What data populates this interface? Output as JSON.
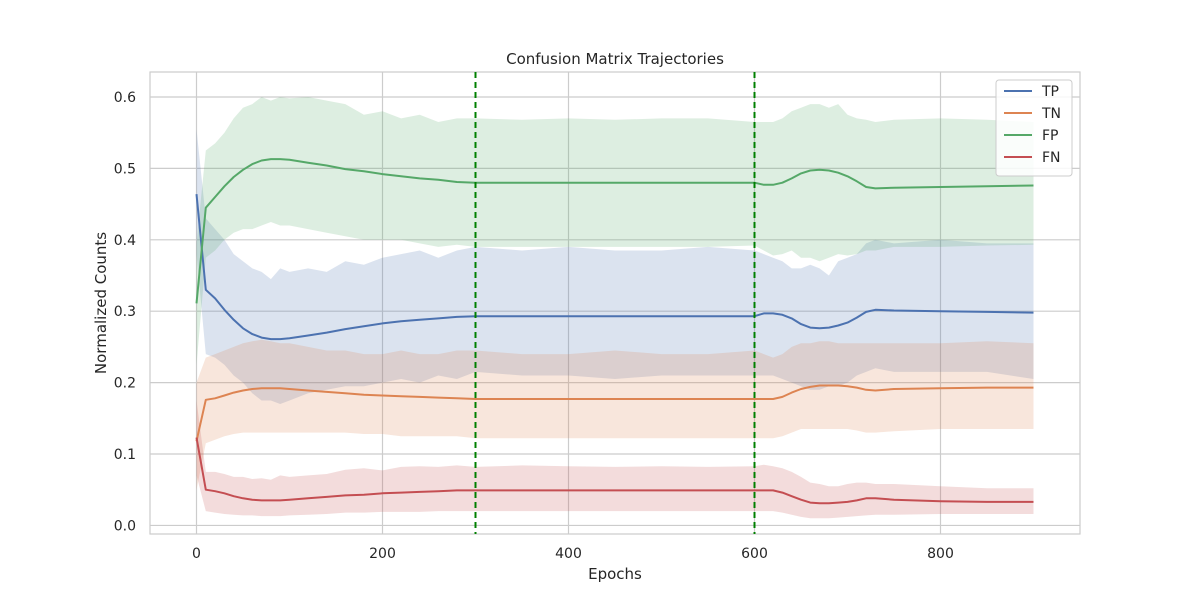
{
  "chart_data": {
    "type": "line",
    "title": "Confusion Matrix Trajectories",
    "xlabel": "Epochs",
    "ylabel": "Normalized Counts",
    "xlim": [
      -50,
      950
    ],
    "ylim": [
      -0.012,
      0.635
    ],
    "xticks": [
      0,
      200,
      400,
      600,
      800
    ],
    "yticks": [
      0.0,
      0.1,
      0.2,
      0.3,
      0.4,
      0.5,
      0.6
    ],
    "ytick_labels": [
      "0.0",
      "0.1",
      "0.2",
      "0.3",
      "0.4",
      "0.5",
      "0.6"
    ],
    "grid": true,
    "legend_position": "top-right",
    "vertical_lines": [
      {
        "x": 300,
        "color": "#008000",
        "style": "dashed"
      },
      {
        "x": 600,
        "color": "#008000",
        "style": "dashed"
      }
    ],
    "series": [
      {
        "name": "TP",
        "color": "#4c72b0",
        "x": [
          0,
          10,
          20,
          30,
          40,
          50,
          60,
          70,
          80,
          90,
          100,
          120,
          140,
          160,
          180,
          200,
          220,
          240,
          260,
          280,
          300,
          350,
          400,
          450,
          500,
          550,
          600,
          610,
          620,
          630,
          640,
          650,
          660,
          670,
          680,
          690,
          700,
          710,
          720,
          730,
          750,
          800,
          850,
          900
        ],
        "values": [
          0.464,
          0.33,
          0.318,
          0.302,
          0.288,
          0.276,
          0.268,
          0.263,
          0.261,
          0.261,
          0.262,
          0.266,
          0.27,
          0.275,
          0.279,
          0.283,
          0.286,
          0.288,
          0.29,
          0.292,
          0.293,
          0.293,
          0.293,
          0.293,
          0.293,
          0.293,
          0.293,
          0.297,
          0.297,
          0.295,
          0.29,
          0.282,
          0.277,
          0.276,
          0.277,
          0.28,
          0.284,
          0.291,
          0.299,
          0.302,
          0.301,
          0.3,
          0.299,
          0.298
        ],
        "band_upper": [
          0.555,
          0.43,
          0.415,
          0.4,
          0.38,
          0.37,
          0.36,
          0.355,
          0.345,
          0.36,
          0.355,
          0.36,
          0.355,
          0.37,
          0.365,
          0.375,
          0.38,
          0.385,
          0.375,
          0.385,
          0.39,
          0.385,
          0.39,
          0.385,
          0.385,
          0.39,
          0.385,
          0.38,
          0.375,
          0.37,
          0.36,
          0.36,
          0.365,
          0.36,
          0.35,
          0.37,
          0.375,
          0.38,
          0.395,
          0.4,
          0.395,
          0.4,
          0.395,
          0.395
        ],
        "band_lower": [
          0.38,
          0.24,
          0.235,
          0.225,
          0.21,
          0.2,
          0.185,
          0.175,
          0.175,
          0.17,
          0.175,
          0.185,
          0.19,
          0.195,
          0.195,
          0.2,
          0.205,
          0.2,
          0.21,
          0.205,
          0.215,
          0.21,
          0.21,
          0.205,
          0.21,
          0.21,
          0.21,
          0.21,
          0.21,
          0.205,
          0.2,
          0.195,
          0.19,
          0.19,
          0.195,
          0.195,
          0.2,
          0.21,
          0.215,
          0.22,
          0.215,
          0.215,
          0.215,
          0.205
        ]
      },
      {
        "name": "TN",
        "color": "#dd8452",
        "x": [
          0,
          10,
          20,
          30,
          40,
          50,
          60,
          70,
          80,
          90,
          100,
          120,
          140,
          160,
          180,
          200,
          220,
          240,
          260,
          280,
          300,
          350,
          400,
          450,
          500,
          550,
          600,
          610,
          620,
          630,
          640,
          650,
          660,
          670,
          680,
          690,
          700,
          710,
          720,
          730,
          750,
          800,
          850,
          900
        ],
        "values": [
          0.118,
          0.176,
          0.178,
          0.182,
          0.186,
          0.189,
          0.191,
          0.192,
          0.192,
          0.192,
          0.191,
          0.189,
          0.187,
          0.185,
          0.183,
          0.182,
          0.181,
          0.18,
          0.179,
          0.178,
          0.177,
          0.177,
          0.177,
          0.177,
          0.177,
          0.177,
          0.177,
          0.177,
          0.177,
          0.18,
          0.186,
          0.191,
          0.194,
          0.196,
          0.196,
          0.196,
          0.195,
          0.193,
          0.19,
          0.189,
          0.191,
          0.192,
          0.193,
          0.193
        ],
        "band_upper": [
          0.2,
          0.235,
          0.24,
          0.245,
          0.25,
          0.255,
          0.258,
          0.26,
          0.258,
          0.255,
          0.255,
          0.25,
          0.245,
          0.245,
          0.24,
          0.24,
          0.245,
          0.24,
          0.24,
          0.245,
          0.245,
          0.24,
          0.24,
          0.245,
          0.24,
          0.24,
          0.245,
          0.24,
          0.235,
          0.24,
          0.25,
          0.255,
          0.255,
          0.258,
          0.258,
          0.255,
          0.255,
          0.255,
          0.255,
          0.255,
          0.255,
          0.255,
          0.258,
          0.255
        ],
        "band_lower": [
          0.05,
          0.115,
          0.12,
          0.125,
          0.128,
          0.13,
          0.13,
          0.13,
          0.13,
          0.13,
          0.13,
          0.13,
          0.13,
          0.13,
          0.128,
          0.128,
          0.125,
          0.125,
          0.125,
          0.125,
          0.122,
          0.122,
          0.122,
          0.122,
          0.122,
          0.122,
          0.122,
          0.122,
          0.122,
          0.125,
          0.13,
          0.135,
          0.135,
          0.135,
          0.135,
          0.135,
          0.135,
          0.133,
          0.13,
          0.13,
          0.132,
          0.135,
          0.135,
          0.135
        ]
      },
      {
        "name": "FP",
        "color": "#55a868",
        "x": [
          0,
          10,
          20,
          30,
          40,
          50,
          60,
          70,
          80,
          90,
          100,
          120,
          140,
          160,
          180,
          200,
          220,
          240,
          260,
          280,
          300,
          350,
          400,
          450,
          500,
          550,
          600,
          610,
          620,
          630,
          640,
          650,
          660,
          670,
          680,
          690,
          700,
          710,
          720,
          730,
          750,
          800,
          850,
          900
        ],
        "values": [
          0.311,
          0.445,
          0.46,
          0.475,
          0.488,
          0.498,
          0.506,
          0.511,
          0.513,
          0.513,
          0.512,
          0.508,
          0.504,
          0.499,
          0.496,
          0.492,
          0.489,
          0.486,
          0.484,
          0.481,
          0.48,
          0.48,
          0.48,
          0.48,
          0.48,
          0.48,
          0.48,
          0.477,
          0.477,
          0.48,
          0.486,
          0.493,
          0.497,
          0.498,
          0.497,
          0.494,
          0.489,
          0.482,
          0.474,
          0.472,
          0.473,
          0.474,
          0.475,
          0.476
        ],
        "band_upper": [
          0.395,
          0.525,
          0.535,
          0.55,
          0.57,
          0.585,
          0.59,
          0.6,
          0.595,
          0.6,
          0.598,
          0.6,
          0.595,
          0.59,
          0.575,
          0.58,
          0.57,
          0.575,
          0.565,
          0.57,
          0.57,
          0.568,
          0.57,
          0.568,
          0.57,
          0.57,
          0.565,
          0.565,
          0.565,
          0.57,
          0.58,
          0.585,
          0.59,
          0.59,
          0.585,
          0.59,
          0.575,
          0.57,
          0.568,
          0.565,
          0.568,
          0.57,
          0.568,
          0.565
        ],
        "band_lower": [
          0.225,
          0.375,
          0.385,
          0.4,
          0.41,
          0.415,
          0.415,
          0.42,
          0.425,
          0.42,
          0.42,
          0.415,
          0.41,
          0.405,
          0.4,
          0.4,
          0.4,
          0.395,
          0.39,
          0.393,
          0.39,
          0.39,
          0.39,
          0.39,
          0.39,
          0.39,
          0.392,
          0.385,
          0.378,
          0.38,
          0.385,
          0.375,
          0.375,
          0.37,
          0.375,
          0.38,
          0.378,
          0.38,
          0.385,
          0.385,
          0.39,
          0.39,
          0.392,
          0.393
        ]
      },
      {
        "name": "FN",
        "color": "#c44e52",
        "x": [
          0,
          10,
          20,
          30,
          40,
          50,
          60,
          70,
          80,
          90,
          100,
          120,
          140,
          160,
          180,
          200,
          220,
          240,
          260,
          280,
          300,
          350,
          400,
          450,
          500,
          550,
          600,
          610,
          620,
          630,
          640,
          650,
          660,
          670,
          680,
          690,
          700,
          710,
          720,
          730,
          750,
          800,
          850,
          900
        ],
        "values": [
          0.123,
          0.05,
          0.048,
          0.045,
          0.041,
          0.038,
          0.036,
          0.035,
          0.035,
          0.035,
          0.036,
          0.038,
          0.04,
          0.042,
          0.043,
          0.045,
          0.046,
          0.047,
          0.048,
          0.049,
          0.049,
          0.049,
          0.049,
          0.049,
          0.049,
          0.049,
          0.049,
          0.049,
          0.049,
          0.046,
          0.041,
          0.036,
          0.032,
          0.031,
          0.031,
          0.032,
          0.033,
          0.035,
          0.038,
          0.038,
          0.036,
          0.034,
          0.033,
          0.033
        ],
        "band_upper": [
          0.175,
          0.075,
          0.075,
          0.072,
          0.068,
          0.068,
          0.065,
          0.066,
          0.064,
          0.07,
          0.068,
          0.07,
          0.072,
          0.078,
          0.08,
          0.077,
          0.082,
          0.083,
          0.082,
          0.084,
          0.082,
          0.084,
          0.083,
          0.082,
          0.083,
          0.082,
          0.083,
          0.085,
          0.083,
          0.08,
          0.075,
          0.068,
          0.06,
          0.058,
          0.055,
          0.055,
          0.058,
          0.06,
          0.06,
          0.058,
          0.058,
          0.055,
          0.052,
          0.052
        ],
        "band_lower": [
          0.07,
          0.02,
          0.018,
          0.016,
          0.015,
          0.014,
          0.014,
          0.013,
          0.013,
          0.013,
          0.014,
          0.015,
          0.016,
          0.018,
          0.018,
          0.019,
          0.019,
          0.019,
          0.02,
          0.02,
          0.02,
          0.02,
          0.02,
          0.02,
          0.02,
          0.02,
          0.02,
          0.02,
          0.02,
          0.018,
          0.015,
          0.012,
          0.01,
          0.01,
          0.01,
          0.011,
          0.012,
          0.013,
          0.014,
          0.015,
          0.015,
          0.016,
          0.016,
          0.016
        ]
      }
    ]
  }
}
